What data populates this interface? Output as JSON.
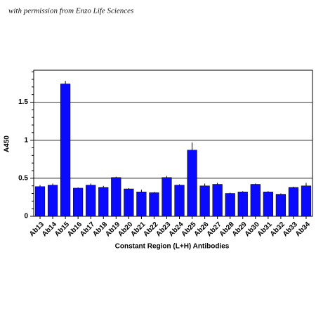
{
  "chart_data": {
    "type": "bar",
    "annotation": "with permission from Enzo Life Sciences",
    "xlabel": "Constant Region (L+H) Antibodies",
    "ylabel": "A450",
    "categories": [
      "Ab13",
      "Ab14",
      "Ab15",
      "Ab16",
      "Ab17",
      "Ab18",
      "Ab19",
      "Ab20",
      "Ab21",
      "Ab22",
      "Ab23",
      "Ab24",
      "Ab25",
      "Ab26",
      "Ab27",
      "Ab28",
      "Ab29",
      "Ab30",
      "Ab31",
      "Ab32",
      "Ab33",
      "Ab34"
    ],
    "values": [
      0.39,
      0.41,
      1.74,
      0.37,
      0.41,
      0.38,
      0.51,
      0.36,
      0.32,
      0.31,
      0.51,
      0.41,
      0.87,
      0.4,
      0.42,
      0.3,
      0.32,
      0.42,
      0.32,
      0.29,
      0.38,
      0.4
    ],
    "errors": [
      0.02,
      0.02,
      0.04,
      0.01,
      0.02,
      0.02,
      0.01,
      0.01,
      0.03,
      0.01,
      0.02,
      0.01,
      0.1,
      0.03,
      0.02,
      0.01,
      0.01,
      0.01,
      0.01,
      0.01,
      0.01,
      0.04
    ],
    "color": "#0a0aff",
    "ylim": [
      0,
      1.92
    ],
    "yticks": [
      0,
      0.5,
      1,
      1.5
    ],
    "minor_yticks": [
      0.1,
      0.2,
      0.3,
      0.4,
      0.6,
      0.7,
      0.8,
      0.9,
      1.1,
      1.2,
      1.3,
      1.4,
      1.6,
      1.7,
      1.8,
      1.9
    ],
    "grid": true
  }
}
